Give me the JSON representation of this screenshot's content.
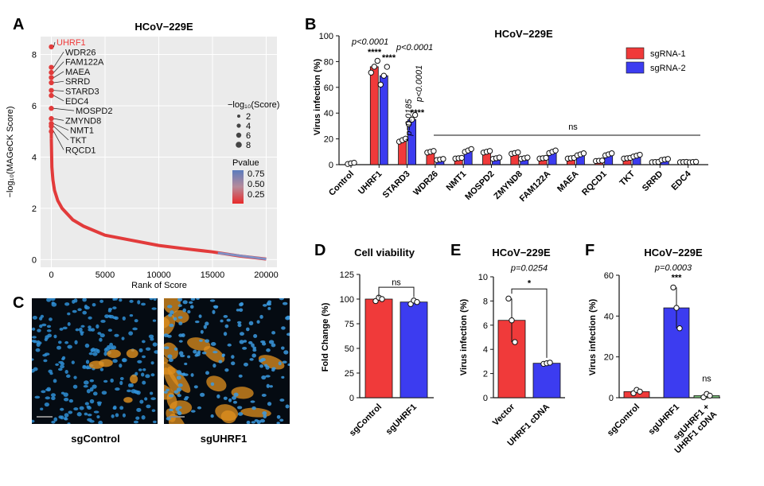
{
  "panels": {
    "A": "A",
    "B": "B",
    "C": "C",
    "D": "D",
    "E": "E",
    "F": "F"
  },
  "colors": {
    "red": "#f03a3a",
    "blue": "#3c3cf0",
    "green": "#7ec47e",
    "grey": "#d0d0d0",
    "lightgrey": "#ebebeb"
  },
  "chart_data": [
    {
      "id": "A",
      "type": "scatter",
      "title": "HCoV−229E",
      "xlabel": "Rank of Score",
      "ylabel": "−log₁₀(MAGeCK Score)",
      "xlim": [
        -1000,
        21000
      ],
      "ylim": [
        -0.3,
        8.7
      ],
      "xticks": [
        0,
        5000,
        10000,
        15000,
        20000
      ],
      "xtick_labels": [
        "0",
        "5000",
        "10000",
        "15000",
        "20000"
      ],
      "yticks": [
        0,
        2,
        4,
        6,
        8
      ],
      "ytick_labels": [
        "0",
        "2",
        "4",
        "6",
        "8"
      ],
      "curve": {
        "x": [
          0,
          50,
          150,
          300,
          600,
          1000,
          2000,
          3000,
          5000,
          7500,
          10000,
          12500,
          15000,
          17500,
          20000
        ],
        "y": [
          4.7,
          3.6,
          3.1,
          2.7,
          2.3,
          2.0,
          1.55,
          1.3,
          0.95,
          0.75,
          0.55,
          0.42,
          0.3,
          0.14,
          0.02
        ]
      },
      "genes": [
        {
          "name": "UHRF1",
          "y": 8.3,
          "highlight": true
        },
        {
          "name": "WDR26",
          "y": 7.5
        },
        {
          "name": "FAM122A",
          "y": 7.3
        },
        {
          "name": "MAEA",
          "y": 7.1
        },
        {
          "name": "SRRD",
          "y": 6.9
        },
        {
          "name": "STARD3",
          "y": 6.6
        },
        {
          "name": "EDC4",
          "y": 6.4
        },
        {
          "name": "MOSPD2",
          "y": 5.9
        },
        {
          "name": "ZMYND8",
          "y": 5.5
        },
        {
          "name": "NMT1",
          "y": 5.3
        },
        {
          "name": "TKT",
          "y": 5.2
        },
        {
          "name": "RQCD1",
          "y": 5.0
        }
      ],
      "legend_size": {
        "title": "−log₁₀(Score)",
        "labels": [
          "2",
          "4",
          "6",
          "8"
        ]
      },
      "legend_color": {
        "title": "Pvalue",
        "labels": [
          "0.75",
          "0.50",
          "0.25"
        ]
      }
    },
    {
      "id": "B",
      "type": "bar",
      "title": "HCoV−229E",
      "ylabel": "Virus infection (%)",
      "ylim": [
        0,
        100
      ],
      "yticks": [
        0,
        20,
        40,
        60,
        80,
        100
      ],
      "ytick_labels": [
        "0",
        "20",
        "40",
        "60",
        "80",
        "100"
      ],
      "categories": [
        "Control",
        "UHRF1",
        "STARD3",
        "WDR26",
        "NMT1",
        "MOSPD2",
        "ZMYND8",
        "FAM122A",
        "MAEA",
        "RQCD1",
        "TKT",
        "SRRD",
        "EDC4"
      ],
      "series": [
        {
          "name": "sgRNA-1",
          "values": [
            1,
            76,
            19,
            10,
            5,
            10,
            9,
            5,
            5,
            3,
            5,
            2,
            2
          ]
        },
        {
          "name": "sgRNA-2",
          "values": [
            null,
            69,
            35,
            4,
            11,
            5,
            5,
            10,
            8,
            8,
            7,
            4,
            2
          ]
        }
      ],
      "annotations": [
        {
          "text": "p<0.0001",
          "target": "UHRF1-1"
        },
        {
          "text": "****",
          "target": "UHRF1-1"
        },
        {
          "text": "p<0.0001",
          "target": "UHRF1-2"
        },
        {
          "text": "****",
          "target": "UHRF1-2"
        },
        {
          "text": "* p=0.0185",
          "target": "STARD3-1"
        },
        {
          "text": "p<0.0001",
          "target": "STARD3-2"
        },
        {
          "text": "****",
          "target": "STARD3-2"
        },
        {
          "text": "ns",
          "target": "WDR26-EDC4"
        }
      ]
    },
    {
      "id": "D",
      "type": "bar",
      "title": "Cell viability",
      "ylabel": "Fold Change (%)",
      "ylim": [
        0,
        125
      ],
      "yticks": [
        0,
        25,
        50,
        75,
        100,
        125
      ],
      "ytick_labels": [
        "0",
        "25",
        "50",
        "75",
        "100",
        "125"
      ],
      "categories": [
        "sgControl",
        "sgUHRF1"
      ],
      "values": [
        100,
        97
      ],
      "annotations": [
        {
          "text": "ns"
        }
      ]
    },
    {
      "id": "E",
      "type": "bar",
      "title": "HCoV−229E",
      "ylabel": "Virus infection (%)",
      "ylim": [
        0,
        10
      ],
      "yticks": [
        0,
        2,
        4,
        6,
        8,
        10
      ],
      "ytick_labels": [
        "0",
        "2",
        "4",
        "6",
        "8",
        "10"
      ],
      "categories": [
        "Vector",
        "UHRF1 cDNA"
      ],
      "values": [
        6.4,
        2.85
      ],
      "annotations": [
        {
          "text": "p=0.0254"
        },
        {
          "text": "*"
        }
      ]
    },
    {
      "id": "F",
      "type": "bar",
      "title": "HCoV−229E",
      "ylabel": "Virus infection (%)",
      "ylim": [
        0,
        60
      ],
      "yticks": [
        0,
        20,
        40,
        60
      ],
      "ytick_labels": [
        "0",
        "20",
        "40",
        "60"
      ],
      "categories": [
        "sgControl",
        "sgUHRF1",
        "sgUHRF1 + UHRF1 cDNA"
      ],
      "values": [
        3,
        44,
        1
      ],
      "annotations": [
        {
          "text": "p=0.0003"
        },
        {
          "text": "***"
        },
        {
          "text": "ns"
        }
      ]
    }
  ],
  "panel_c": {
    "labels": [
      "sgControl",
      "sgUHRF1"
    ]
  }
}
